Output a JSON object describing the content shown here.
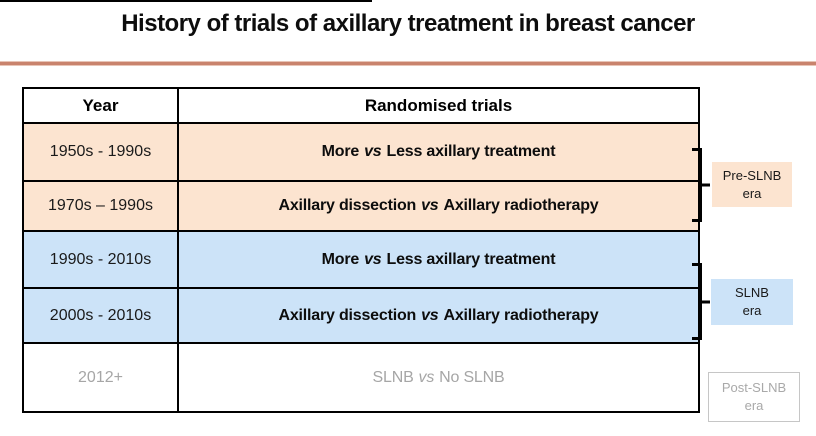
{
  "slide": {
    "title": "History of trials of axillary treatment in breast cancer"
  },
  "table": {
    "headers": {
      "year": "Year",
      "trials": "Randomised trials"
    },
    "rows": [
      {
        "year": "1950s - 1990s",
        "trial_before": "More",
        "trial_vs": "vs",
        "trial_after": "Less axillary treatment"
      },
      {
        "year": "1970s – 1990s",
        "trial_before": "Axillary dissection",
        "trial_vs": "vs",
        "trial_after": "Axillary radiotherapy"
      },
      {
        "year": "1990s - 2010s",
        "trial_before": "More",
        "trial_vs": "vs",
        "trial_after": "Less axillary treatment"
      },
      {
        "year": "2000s - 2010s",
        "trial_before": "Axillary dissection",
        "trial_vs": "vs",
        "trial_after": "Axillary radiotherapy"
      },
      {
        "year": "2012+",
        "trial_before": "SLNB",
        "trial_vs": "vs",
        "trial_after": "No SLNB"
      }
    ]
  },
  "era_labels": {
    "pre": {
      "line1": "Pre-SLNB",
      "line2": "era"
    },
    "slnb": {
      "line1": "SLNB",
      "line2": "era"
    },
    "post": {
      "line1": "Post-SLNB",
      "line2": "era"
    }
  },
  "colors": {
    "pre_slnb_fill": "#fce4d0",
    "slnb_fill": "#cce3f8",
    "divider_line": "#c9836d",
    "muted_text": "#a6a6a6",
    "table_border": "#000000"
  }
}
